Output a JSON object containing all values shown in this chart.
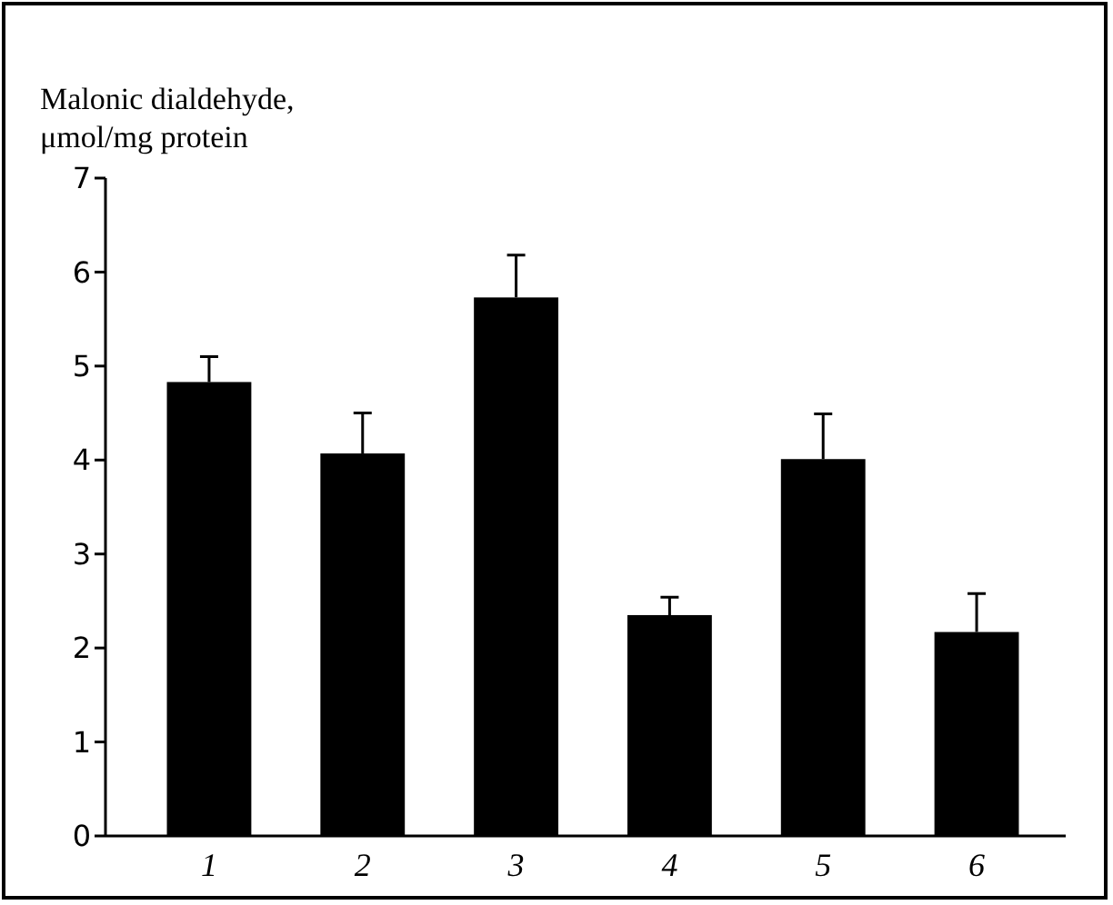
{
  "chart_data": {
    "type": "bar",
    "ylabel": "Malonic dialdehyde, μmol/mg protein",
    "categories": [
      "1",
      "2",
      "3",
      "4",
      "5",
      "6"
    ],
    "values": [
      4.83,
      4.07,
      5.73,
      2.35,
      4.01,
      2.17
    ],
    "errors": [
      0.27,
      0.43,
      0.45,
      0.19,
      0.48,
      0.41
    ],
    "color": "#000000",
    "ylim": [
      0,
      7
    ],
    "yticks": [
      0,
      1,
      2,
      3,
      4,
      5,
      6,
      7
    ],
    "grid": false
  }
}
